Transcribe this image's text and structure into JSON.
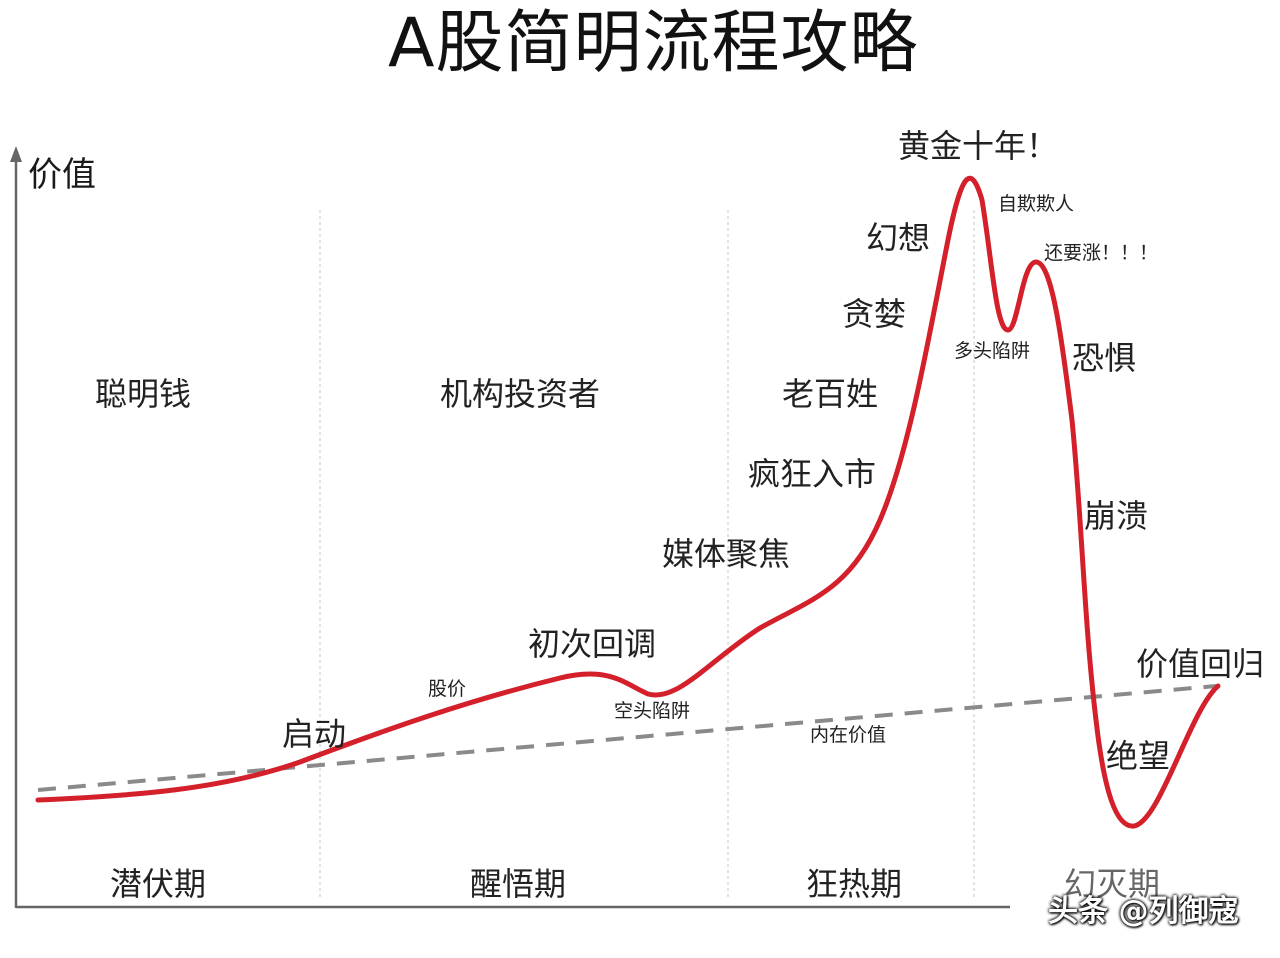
{
  "title": "A股简明流程攻略",
  "axis": {
    "y_label": "价值"
  },
  "top_groups": [
    "聪明钱",
    "机构投资者",
    "老百姓"
  ],
  "phases": [
    "潜伏期",
    "醒悟期",
    "狂热期",
    "幻灭期"
  ],
  "stages": {
    "start": "启动",
    "first_pullback": "初次回调",
    "media_focus": "媒体聚焦",
    "frenzy_entry": "疯狂入市",
    "greed": "贪婪",
    "illusion": "幻想",
    "golden_decade": "黄金十年！",
    "fear": "恐惧",
    "collapse": "崩溃",
    "despair": "绝望",
    "value_return": "价值回归"
  },
  "annotations": {
    "price": "股价",
    "bear_trap": "空头陷阱",
    "intrinsic_value": "内在价值",
    "self_deception": "自欺欺人",
    "still_rising": "还要涨！！！",
    "bull_trap": "多头陷阱"
  },
  "colors": {
    "price_curve": "#d3202a",
    "value_line": "#8a8a8a",
    "axis": "#666666",
    "divider": "#d8d8d8"
  },
  "watermark": "头条 @列御寇"
}
